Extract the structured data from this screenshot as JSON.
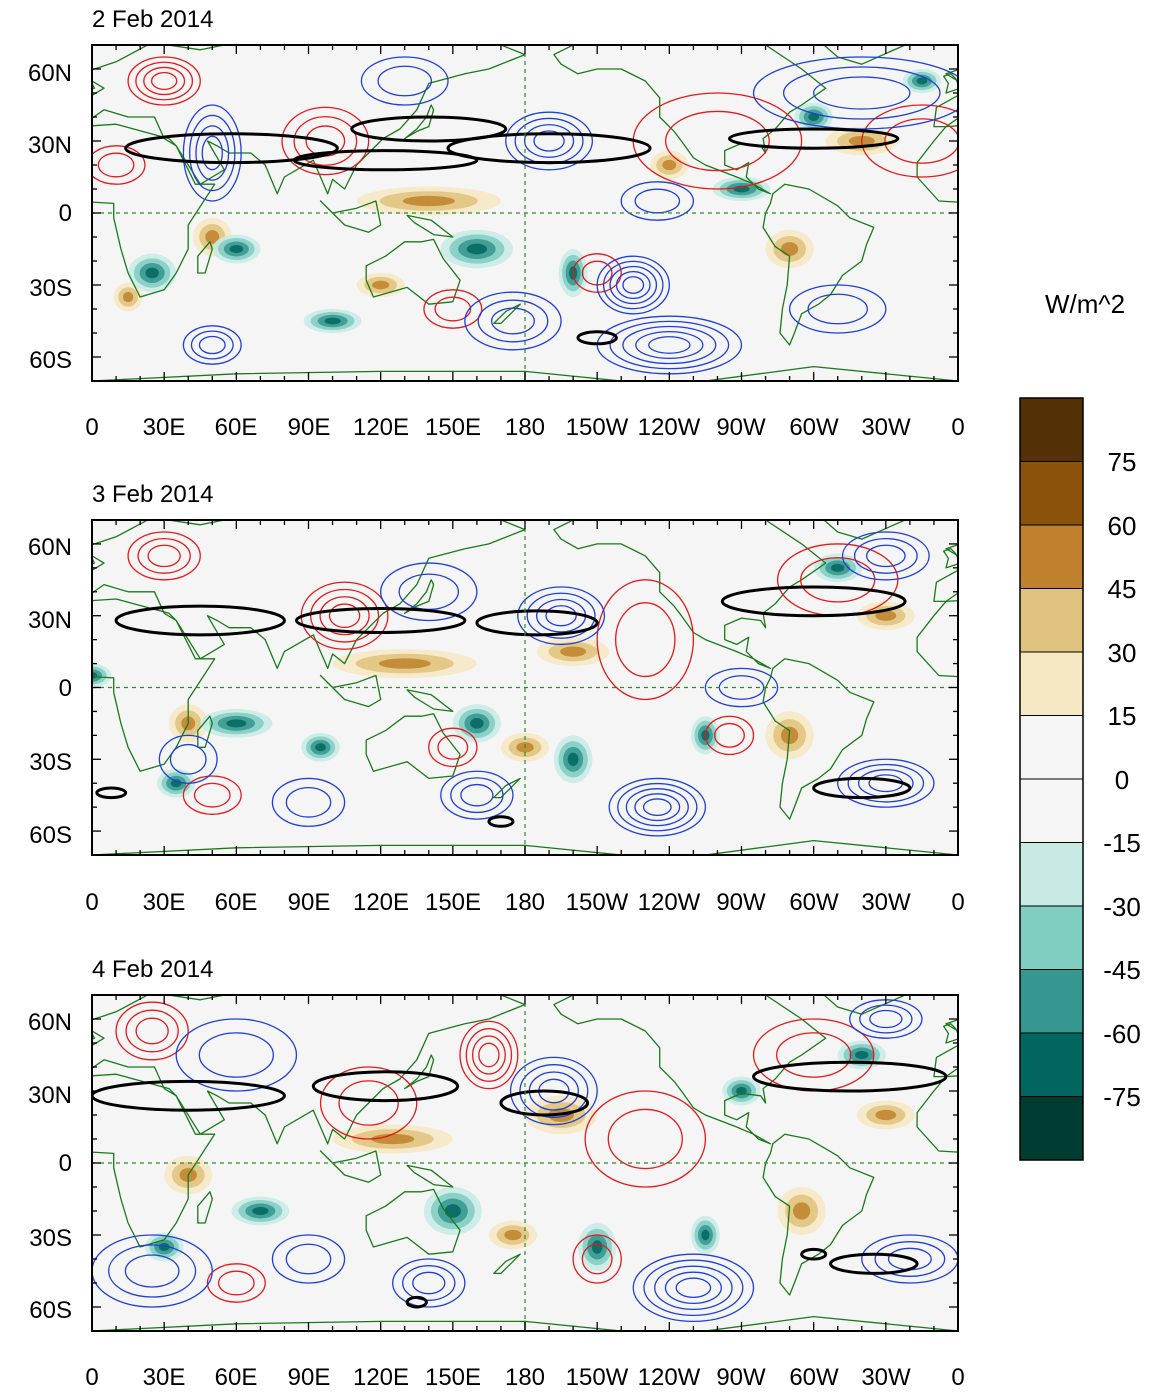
{
  "panels": [
    {
      "title": "2 Feb 2014",
      "features": {
        "black": [
          [
            58,
            27,
            44,
            6
          ],
          [
            122,
            22,
            38,
            4
          ],
          [
            140,
            35,
            32,
            5
          ],
          [
            190,
            27,
            42,
            6
          ],
          [
            300,
            31,
            35,
            4
          ],
          [
            210,
            -52,
            8,
            2.5
          ]
        ],
        "red": [
          [
            97,
            30,
            18,
            14,
            3
          ],
          [
            30,
            55,
            15,
            10,
            4
          ],
          [
            260,
            30,
            35,
            20,
            2
          ],
          [
            210,
            -25,
            10,
            8,
            2
          ],
          [
            10,
            20,
            12,
            8,
            2
          ],
          [
            345,
            30,
            25,
            15,
            2
          ],
          [
            150,
            -40,
            12,
            8,
            2
          ]
        ],
        "blue": [
          [
            50,
            25,
            12,
            20,
            4
          ],
          [
            190,
            30,
            18,
            12,
            4
          ],
          [
            225,
            -30,
            15,
            12,
            5
          ],
          [
            240,
            -55,
            30,
            12,
            5
          ],
          [
            50,
            -55,
            12,
            8,
            3
          ],
          [
            175,
            -45,
            20,
            12,
            3
          ],
          [
            320,
            50,
            45,
            15,
            3
          ],
          [
            235,
            5,
            15,
            8,
            2
          ],
          [
            310,
            -40,
            20,
            10,
            2
          ],
          [
            130,
            55,
            18,
            10,
            2
          ]
        ],
        "brown": [
          [
            140,
            5,
            30,
            6
          ],
          [
            50,
            -10,
            8,
            8
          ],
          [
            290,
            -15,
            10,
            8
          ],
          [
            15,
            -35,
            6,
            6
          ],
          [
            120,
            -30,
            10,
            5
          ],
          [
            320,
            30,
            15,
            6
          ],
          [
            240,
            20,
            8,
            6
          ]
        ],
        "teal": [
          [
            160,
            -15,
            15,
            8
          ],
          [
            200,
            -25,
            6,
            10
          ],
          [
            25,
            -25,
            10,
            8
          ],
          [
            60,
            -15,
            10,
            6
          ],
          [
            300,
            40,
            8,
            6
          ],
          [
            270,
            10,
            12,
            5
          ],
          [
            345,
            55,
            8,
            5
          ],
          [
            100,
            -45,
            12,
            5
          ]
        ]
      }
    },
    {
      "title": "3 Feb 2014",
      "features": {
        "black": [
          [
            45,
            28,
            35,
            6
          ],
          [
            120,
            28,
            35,
            5
          ],
          [
            185,
            27,
            25,
            5
          ],
          [
            300,
            36,
            38,
            6
          ],
          [
            320,
            -42,
            20,
            4
          ],
          [
            8,
            -44,
            6,
            2
          ],
          [
            170,
            -56,
            5,
            2
          ]
        ],
        "red": [
          [
            105,
            30,
            18,
            14,
            4
          ],
          [
            30,
            55,
            15,
            10,
            3
          ],
          [
            230,
            20,
            20,
            25,
            2
          ],
          [
            50,
            -45,
            12,
            8,
            2
          ],
          [
            150,
            -25,
            10,
            8,
            2
          ],
          [
            310,
            45,
            25,
            15,
            2
          ],
          [
            265,
            -20,
            10,
            8,
            2
          ]
        ],
        "blue": [
          [
            195,
            30,
            18,
            12,
            4
          ],
          [
            235,
            -50,
            20,
            12,
            5
          ],
          [
            330,
            -40,
            20,
            10,
            4
          ],
          [
            330,
            55,
            18,
            10,
            3
          ],
          [
            160,
            -45,
            15,
            10,
            3
          ],
          [
            90,
            -48,
            15,
            10,
            2
          ],
          [
            40,
            -30,
            12,
            10,
            2
          ],
          [
            270,
            0,
            15,
            8,
            2
          ],
          [
            140,
            40,
            20,
            12,
            2
          ]
        ],
        "brown": [
          [
            130,
            10,
            30,
            6
          ],
          [
            200,
            15,
            15,
            6
          ],
          [
            40,
            -15,
            8,
            8
          ],
          [
            290,
            -20,
            10,
            10
          ],
          [
            330,
            30,
            12,
            6
          ],
          [
            180,
            -25,
            10,
            6
          ]
        ],
        "teal": [
          [
            60,
            -15,
            15,
            6
          ],
          [
            35,
            -40,
            8,
            6
          ],
          [
            160,
            -15,
            10,
            8
          ],
          [
            200,
            -30,
            8,
            10
          ],
          [
            310,
            50,
            10,
            6
          ],
          [
            0,
            5,
            8,
            5
          ],
          [
            95,
            -25,
            8,
            6
          ],
          [
            255,
            -20,
            6,
            8
          ]
        ]
      }
    },
    {
      "title": "4 Feb 2014",
      "features": {
        "black": [
          [
            40,
            28,
            40,
            6
          ],
          [
            122,
            32,
            30,
            6
          ],
          [
            188,
            25,
            18,
            5
          ],
          [
            315,
            36,
            40,
            6
          ],
          [
            325,
            -42,
            18,
            4
          ],
          [
            300,
            -38,
            5,
            2
          ],
          [
            135,
            -58,
            4,
            2
          ]
        ],
        "red": [
          [
            165,
            45,
            12,
            14,
            4
          ],
          [
            25,
            55,
            15,
            12,
            3
          ],
          [
            230,
            10,
            25,
            20,
            2
          ],
          [
            115,
            25,
            20,
            15,
            2
          ],
          [
            300,
            45,
            25,
            15,
            2
          ],
          [
            60,
            -50,
            12,
            8,
            2
          ],
          [
            210,
            -40,
            10,
            10,
            2
          ]
        ],
        "blue": [
          [
            192,
            30,
            18,
            14,
            4
          ],
          [
            250,
            -52,
            25,
            14,
            5
          ],
          [
            25,
            -45,
            25,
            15,
            3
          ],
          [
            140,
            -50,
            15,
            10,
            3
          ],
          [
            330,
            60,
            15,
            8,
            3
          ],
          [
            340,
            -40,
            20,
            10,
            3
          ],
          [
            90,
            -40,
            15,
            10,
            2
          ],
          [
            60,
            45,
            25,
            15,
            2
          ]
        ],
        "brown": [
          [
            125,
            10,
            25,
            6
          ],
          [
            195,
            20,
            15,
            8
          ],
          [
            40,
            -5,
            10,
            8
          ],
          [
            295,
            -20,
            10,
            10
          ],
          [
            330,
            20,
            12,
            6
          ],
          [
            175,
            -30,
            10,
            6
          ]
        ],
        "teal": [
          [
            30,
            -35,
            8,
            6
          ],
          [
            150,
            -20,
            12,
            10
          ],
          [
            210,
            -35,
            8,
            10
          ],
          [
            70,
            -20,
            12,
            6
          ],
          [
            255,
            -30,
            6,
            8
          ],
          [
            320,
            45,
            10,
            6
          ],
          [
            270,
            30,
            8,
            6
          ]
        ]
      }
    }
  ],
  "axes": {
    "x_ticks": [
      "0",
      "30E",
      "60E",
      "90E",
      "120E",
      "150E",
      "180",
      "150W",
      "120W",
      "90W",
      "60W",
      "30W",
      "0"
    ],
    "y_ticks": [
      "60N",
      "30N",
      "0",
      "30S",
      "60S"
    ],
    "y_values": [
      60,
      30,
      0,
      -30,
      -60
    ],
    "lat_range": [
      -70,
      70
    ],
    "lon_range": [
      0,
      360
    ]
  },
  "colorbar": {
    "unit_label": "W/m^2",
    "labels": [
      "75",
      "60",
      "45",
      "30",
      "15",
      "0",
      "-15",
      "-30",
      "-45",
      "-60",
      "-75"
    ],
    "colors": [
      "#543005",
      "#8c510a",
      "#bf812d",
      "#dfc27d",
      "#f6e8c3",
      "#f5f5f5",
      "#f5f5f5",
      "#c7eae5",
      "#80cdc1",
      "#35978f",
      "#01665e",
      "#003c30"
    ]
  },
  "colors": {
    "red_contour": "#e41a1c",
    "blue_contour": "#1f3fd6",
    "black_contour": "#000000",
    "coastline": "#1a7a1a",
    "background_field": "#f5f5f5"
  }
}
